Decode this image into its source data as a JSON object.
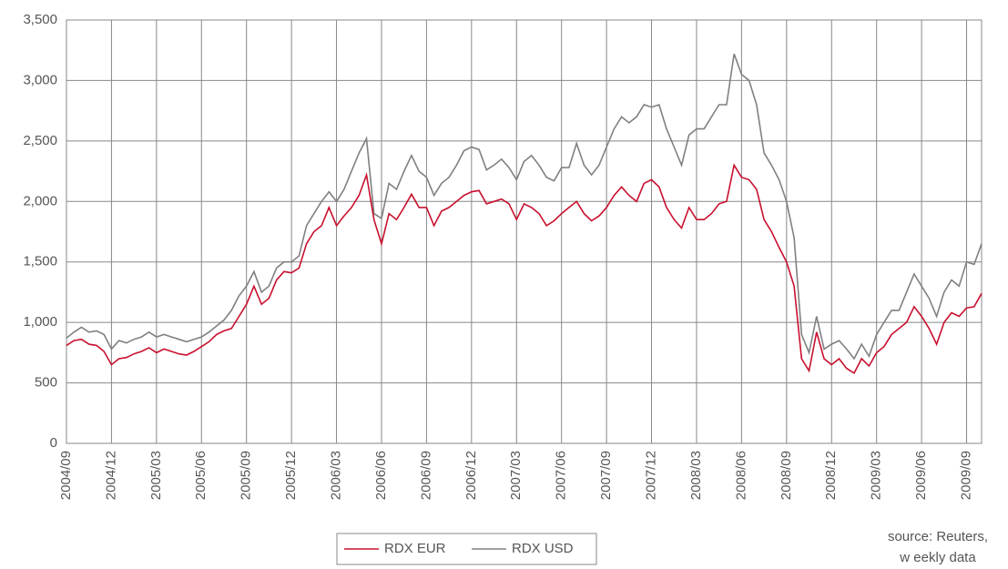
{
  "chart_data": {
    "type": "line",
    "categories": [
      "2004/09",
      null,
      null,
      null,
      null,
      null,
      "2004/12",
      null,
      null,
      null,
      null,
      null,
      "2005/03",
      null,
      null,
      null,
      null,
      null,
      "2005/06",
      null,
      null,
      null,
      null,
      null,
      "2005/09",
      null,
      null,
      null,
      null,
      null,
      "2005/12",
      null,
      null,
      null,
      null,
      null,
      "2006/03",
      null,
      null,
      null,
      null,
      null,
      "2006/06",
      null,
      null,
      null,
      null,
      null,
      "2006/09",
      null,
      null,
      null,
      null,
      null,
      "2006/12",
      null,
      null,
      null,
      null,
      null,
      "2007/03",
      null,
      null,
      null,
      null,
      null,
      "2007/06",
      null,
      null,
      null,
      null,
      null,
      "2007/09",
      null,
      null,
      null,
      null,
      null,
      "2007/12",
      null,
      null,
      null,
      null,
      null,
      "2008/03",
      null,
      null,
      null,
      null,
      null,
      "2008/06",
      null,
      null,
      null,
      null,
      null,
      "2008/09",
      null,
      null,
      null,
      null,
      null,
      "2008/12",
      null,
      null,
      null,
      null,
      null,
      "2009/03",
      null,
      null,
      null,
      null,
      null,
      "2009/06",
      null,
      null,
      null,
      null,
      null,
      "2009/09",
      null,
      null
    ],
    "series": [
      {
        "name": "RDX EUR",
        "color": "#c8102e",
        "values": [
          810,
          850,
          860,
          820,
          810,
          760,
          650,
          700,
          710,
          740,
          760,
          790,
          750,
          780,
          760,
          740,
          730,
          760,
          800,
          840,
          900,
          930,
          950,
          1050,
          1150,
          1300,
          1150,
          1200,
          1350,
          1420,
          1410,
          1450,
          1650,
          1750,
          1800,
          1950,
          1800,
          1880,
          1950,
          2050,
          2220,
          1850,
          1650,
          1900,
          1850,
          1950,
          2060,
          1950,
          1950,
          1800,
          1920,
          1950,
          2000,
          2050,
          2080,
          2090,
          1980,
          2000,
          2020,
          1980,
          1850,
          1980,
          1950,
          1900,
          1800,
          1840,
          1900,
          1950,
          2000,
          1900,
          1840,
          1880,
          1950,
          2050,
          2120,
          2050,
          2000,
          2150,
          2180,
          2120,
          1950,
          1850,
          1780,
          1950,
          1850,
          1850,
          1900,
          1980,
          2000,
          2300,
          2200,
          2180,
          2100,
          1850,
          1750,
          1620,
          1500,
          1300,
          700,
          600,
          920,
          700,
          650,
          700,
          620,
          580,
          700,
          640,
          750,
          800,
          900,
          950,
          1000,
          1130,
          1050,
          950,
          820,
          1000,
          1080,
          1050,
          1120,
          1130,
          1240
        ]
      },
      {
        "name": "RDX USD",
        "color": "#808080",
        "values": [
          870,
          920,
          960,
          920,
          930,
          900,
          780,
          850,
          830,
          860,
          880,
          920,
          880,
          900,
          880,
          860,
          840,
          860,
          880,
          920,
          970,
          1020,
          1100,
          1220,
          1300,
          1420,
          1250,
          1300,
          1450,
          1500,
          1500,
          1550,
          1800,
          1900,
          2000,
          2080,
          2000,
          2100,
          2250,
          2400,
          2520,
          1900,
          1860,
          2150,
          2100,
          2250,
          2380,
          2250,
          2200,
          2050,
          2150,
          2200,
          2300,
          2420,
          2450,
          2430,
          2260,
          2300,
          2350,
          2280,
          2180,
          2330,
          2380,
          2300,
          2200,
          2170,
          2280,
          2280,
          2480,
          2300,
          2220,
          2300,
          2450,
          2600,
          2700,
          2650,
          2700,
          2800,
          2780,
          2800,
          2600,
          2450,
          2300,
          2550,
          2600,
          2600,
          2700,
          2800,
          2800,
          3220,
          3050,
          3000,
          2800,
          2400,
          2300,
          2180,
          2000,
          1700,
          900,
          750,
          1050,
          780,
          820,
          850,
          780,
          700,
          820,
          720,
          900,
          1000,
          1100,
          1100,
          1250,
          1400,
          1300,
          1200,
          1050,
          1250,
          1350,
          1300,
          1500,
          1480,
          1650
        ]
      }
    ],
    "ylim": [
      0,
      3500
    ],
    "yticks": [
      0,
      {
        "value": 500,
        "label": "500"
      },
      {
        "value": 1000,
        "label": "1,000"
      },
      {
        "value": 1500,
        "label": "1,500"
      },
      {
        "value": 2000,
        "label": "2,000"
      },
      {
        "value": 2500,
        "label": "2,500"
      },
      {
        "value": 3000,
        "label": "3,000"
      },
      {
        "value": 3500,
        "label": "3,500"
      }
    ],
    "grid": true,
    "legend": "bottom",
    "annotations": [
      "source: Reuters,",
      "w eekly data"
    ]
  }
}
